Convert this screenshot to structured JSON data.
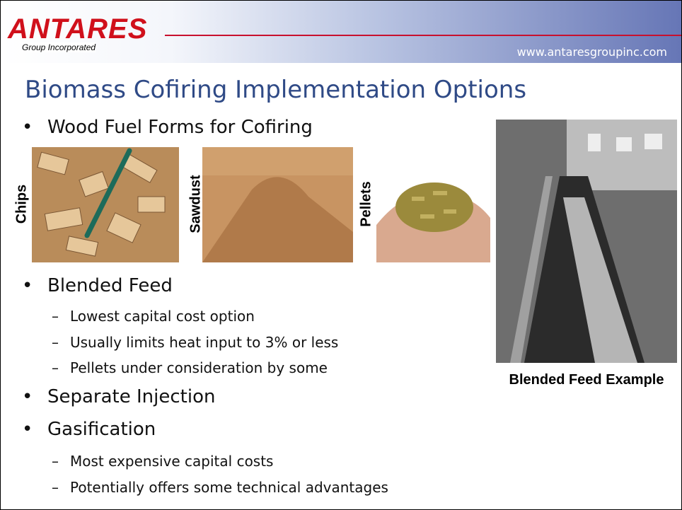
{
  "header": {
    "logo_name": "ANTARES",
    "logo_sub": "Group Incorporated",
    "url": "www.antaresgroupinc.com"
  },
  "title": "Biomass Cofiring Implementation Options",
  "bullets": [
    {
      "text": "Wood Fuel Forms for Cofiring",
      "sub": []
    },
    {
      "text": "Blended Feed",
      "sub": [
        "Lowest capital cost option",
        "Usually limits heat input to 3% or less",
        "Pellets under consideration by some"
      ]
    },
    {
      "text": "Separate Injection",
      "sub": []
    },
    {
      "text": "Gasification",
      "sub": [
        "Most expensive capital costs",
        "Potentially offers some technical advantages"
      ]
    }
  ],
  "images": [
    {
      "label": "Chips"
    },
    {
      "label": "Sawdust"
    },
    {
      "label": "Pellets"
    }
  ],
  "caption": "Blended Feed Example"
}
